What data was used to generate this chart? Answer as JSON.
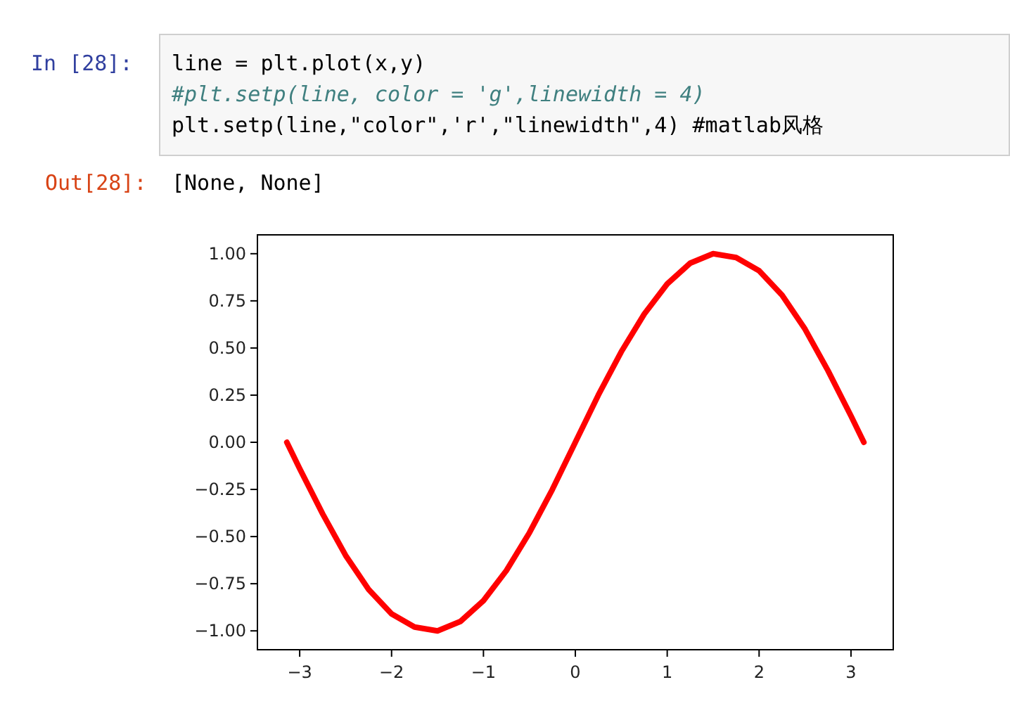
{
  "chart_data": {
    "type": "line",
    "annotations": [
      "In  [28]:",
      "line = plt.plot(x,y)",
      "#plt.setp(line, color = 'g',linewidth = 4)",
      "plt.setp(line,\"color\",'r',\"linewidth\",4) #matlab风格",
      "Out[28]:",
      "[None, None]"
    ],
    "x": [
      -3.14,
      -3,
      -2.75,
      -2.5,
      -2.25,
      -2,
      -1.75,
      -1.5,
      -1.25,
      -1,
      -0.75,
      -0.5,
      -0.25,
      0,
      0.25,
      0.5,
      0.75,
      1,
      1.25,
      1.5,
      1.75,
      2,
      2.25,
      2.5,
      2.75,
      3,
      3.14
    ],
    "series": [
      {
        "color": "#ff0000",
        "values": [
          0.0,
          -0.14,
          -0.38,
          -0.6,
          -0.78,
          -0.91,
          -0.98,
          -1.0,
          -0.95,
          -0.84,
          -0.68,
          -0.48,
          -0.25,
          0.0,
          0.25,
          0.48,
          0.68,
          0.84,
          0.95,
          1.0,
          0.98,
          0.91,
          0.78,
          0.6,
          0.38,
          0.14,
          0.0
        ]
      }
    ],
    "xlim": [
      -3.46,
      3.46
    ],
    "ylim": [
      -1.1,
      1.1
    ],
    "xticks": [
      {
        "value": -3,
        "label": "−3"
      },
      {
        "value": -2,
        "label": "−2"
      },
      {
        "value": -1,
        "label": "−1"
      },
      0,
      1,
      2,
      3
    ],
    "yticks": [
      {
        "value": -1,
        "label": "−1.00"
      },
      {
        "value": -0.75,
        "label": "−0.75"
      },
      {
        "value": -0.5,
        "label": "−0.50"
      },
      {
        "value": -0.25,
        "label": "−0.25"
      },
      {
        "value": 0,
        "label": "0.00"
      },
      {
        "value": 0.25,
        "label": "0.25"
      },
      {
        "value": 0.5,
        "label": "0.50"
      },
      {
        "value": 0.75,
        "label": "0.75"
      },
      {
        "value": 1,
        "label": "1.00"
      }
    ]
  }
}
